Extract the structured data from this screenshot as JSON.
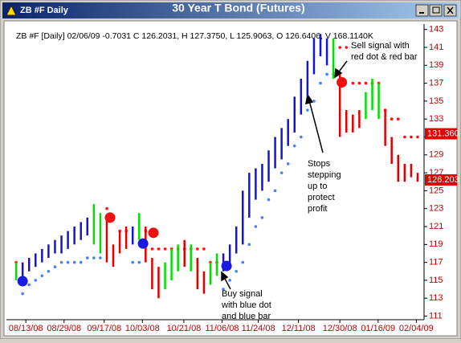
{
  "window": {
    "title": "ZB #F Daily"
  },
  "chart_data": {
    "type": "bar",
    "title": "30 Year T Bond (Futures)",
    "subtitle": "ZB #F [Daily] 02/06/09 -0.7031 C 126.2031, H 127.3750, L 125.9063, O 126.6406, V 168.1140K",
    "palette": {
      "b": "#1414d2",
      "g": "#00e000",
      "r": "#e00000"
    },
    "dot_palette": {
      "b": "#3c82ff",
      "r": "#ff1010"
    },
    "high": [
      117,
      117,
      117.5,
      118,
      118.5,
      119,
      119.5,
      120,
      120.5,
      121,
      121.5,
      122,
      123.5,
      122.5,
      122,
      119,
      120.5,
      121,
      121,
      122.5,
      121,
      117.5,
      116.5,
      117,
      118.5,
      119,
      119.5,
      119,
      117.5,
      116,
      117,
      118,
      118,
      119,
      121,
      125,
      127,
      127.5,
      128,
      129.5,
      131,
      132,
      133,
      135.5,
      137.5,
      139.5,
      142,
      142.5,
      142,
      142,
      138,
      134,
      133.5,
      134,
      136,
      137.5,
      137,
      134,
      131,
      129,
      128,
      128,
      127
    ],
    "low": [
      115,
      114.5,
      116,
      116.5,
      117,
      117.5,
      118,
      118,
      118.5,
      119,
      119.5,
      120,
      119,
      118,
      117,
      116.5,
      118,
      118.5,
      119,
      119.5,
      117,
      114,
      113,
      114,
      115,
      116,
      116.5,
      116,
      114,
      113.5,
      114.5,
      115.5,
      116,
      117,
      118,
      119,
      122,
      124,
      125,
      126,
      127.5,
      128.5,
      130,
      131.5,
      133.5,
      135.5,
      138,
      140,
      139,
      137.5,
      131,
      131.5,
      131.5,
      132,
      133,
      134,
      133,
      130,
      128,
      126,
      126,
      126.5,
      126
    ],
    "color": [
      "g",
      "b",
      "b",
      "b",
      "b",
      "b",
      "b",
      "b",
      "b",
      "b",
      "b",
      "b",
      "g",
      "g",
      "r",
      "r",
      "r",
      "r",
      "b",
      "g",
      "r",
      "r",
      "r",
      "g",
      "g",
      "g",
      "r",
      "g",
      "r",
      "r",
      "g",
      "g",
      "b",
      "b",
      "b",
      "b",
      "b",
      "b",
      "b",
      "b",
      "b",
      "b",
      "b",
      "b",
      "b",
      "b",
      "b",
      "b",
      "b",
      "g",
      "r",
      "r",
      "r",
      "r",
      "g",
      "g",
      "g",
      "r",
      "r",
      "r",
      "r",
      "r",
      "r"
    ],
    "stops": [
      117,
      113.5,
      114.5,
      115,
      115.5,
      116,
      116.5,
      117,
      117,
      117,
      117,
      117.5,
      117.5,
      117.5,
      123,
      122,
      120.5,
      120.5,
      117,
      117,
      120.5,
      118.5,
      118.5,
      118.5,
      118.5,
      118.5,
      118.5,
      118.5,
      118.5,
      118.5,
      117,
      117,
      114,
      115,
      116,
      117,
      119,
      121,
      122,
      124,
      125,
      127,
      128,
      130,
      131,
      134,
      135,
      137,
      138,
      138,
      141,
      141,
      137,
      137,
      137,
      137,
      137,
      134,
      133,
      133,
      131,
      131,
      131
    ],
    "stop_color": [
      "r",
      "b",
      "b",
      "b",
      "b",
      "b",
      "b",
      "b",
      "b",
      "b",
      "b",
      "b",
      "b",
      "b",
      "r",
      "r",
      "r",
      "r",
      "b",
      "b",
      "r",
      "r",
      "r",
      "r",
      "r",
      "r",
      "r",
      "r",
      "r",
      "r",
      "r",
      "r",
      "b",
      "b",
      "b",
      "b",
      "b",
      "b",
      "b",
      "b",
      "b",
      "b",
      "b",
      "b",
      "b",
      "b",
      "b",
      "b",
      "b",
      "b",
      "r",
      "r",
      "r",
      "r",
      "r",
      "r",
      "r",
      "r",
      "r",
      "r",
      "r",
      "r",
      "r"
    ],
    "signals": [
      {
        "index": 1,
        "value": 114.9,
        "color": "#1a1ae0"
      },
      {
        "index": 14.5,
        "value": 122,
        "color": "#f01010"
      },
      {
        "index": 19.6,
        "value": 119.1,
        "color": "#1a1ae0"
      },
      {
        "index": 21.2,
        "value": 120.3,
        "color": "#f01010"
      },
      {
        "index": 32.5,
        "value": 116.6,
        "color": "#1a1ae0"
      },
      {
        "index": 50.3,
        "value": 137.1,
        "color": "#f01010"
      }
    ],
    "price_markers": [
      {
        "value": 131.36,
        "label": "131.360"
      },
      {
        "value": 126.203,
        "label": "126.203"
      }
    ],
    "annotations": [
      {
        "lines": [
          "Sell signal with",
          "red dot & red bar"
        ]
      },
      {
        "lines": [
          "Stops",
          "stepping",
          "up to",
          "protect",
          "profit"
        ]
      },
      {
        "lines": [
          "Buy signal",
          "with blue dot",
          "and blue bar"
        ]
      }
    ],
    "xlim": [
      -1.5,
      63
    ],
    "xticks": [
      {
        "value": 1.5,
        "label": "08/13/08"
      },
      {
        "value": 7.4,
        "label": "08/29/08"
      },
      {
        "value": 13.6,
        "label": "09/17/08"
      },
      {
        "value": 19.5,
        "label": "10/03/08"
      },
      {
        "value": 25.9,
        "label": "10/21/08"
      },
      {
        "value": 31.8,
        "label": "11/06/08"
      },
      {
        "value": 37.4,
        "label": "11/24/08"
      },
      {
        "value": 43.6,
        "label": "12/11/08"
      },
      {
        "value": 50,
        "label": "12/30/08"
      },
      {
        "value": 55.9,
        "label": "01/16/09"
      },
      {
        "value": 61.8,
        "label": "02/04/09"
      }
    ],
    "ylim": [
      110.6,
      143.6
    ],
    "yticks": [
      111,
      113,
      115,
      117,
      119,
      121,
      123,
      125,
      127,
      129,
      131,
      133,
      135,
      137,
      139,
      141,
      143
    ]
  }
}
